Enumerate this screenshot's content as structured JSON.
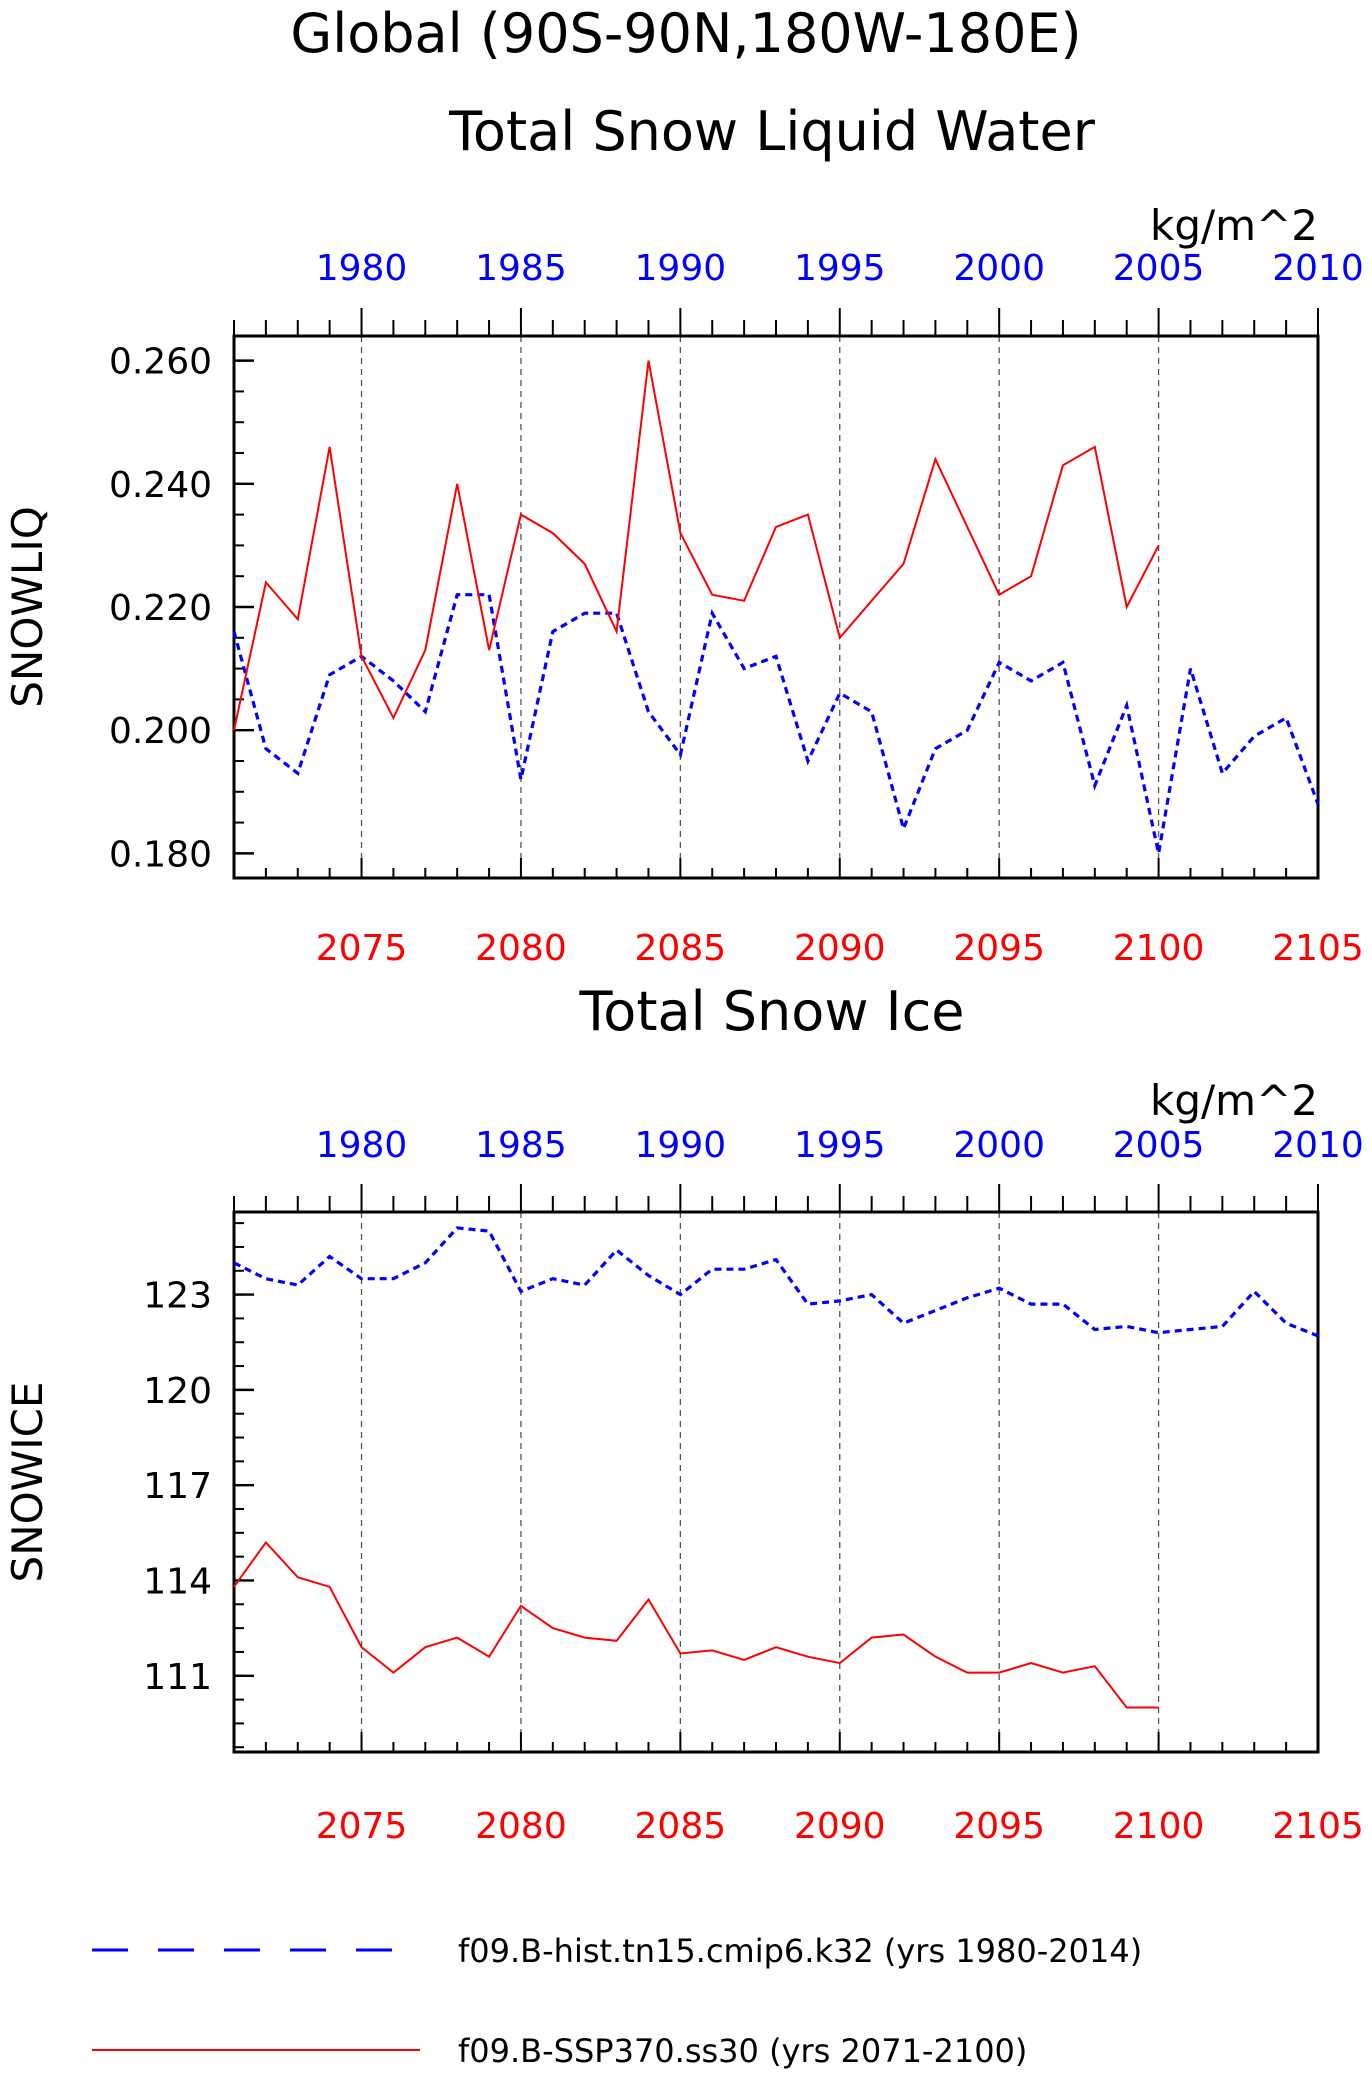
{
  "figure": {
    "title_line1": "Global (90S-90N,180W-180E)",
    "legend": [
      {
        "label": "f09.B-hist.tn15.cmip6.k32 (yrs 1980-2014)",
        "color": "#0000ff",
        "style": "dashed"
      },
      {
        "label": "f09.B-SSP370.ss30 (yrs 2071-2100)",
        "color": "#ff0000",
        "style": "solid"
      }
    ]
  },
  "colors": {
    "hist": "#0000ff",
    "ssp": "#ff0000",
    "axis": "#000000"
  },
  "chart_data": [
    {
      "type": "line",
      "title": "Total Snow Liquid Water",
      "units": "kg/m^2",
      "ylabel": "SNOWLIQ",
      "ylim": [
        0.176,
        0.264
      ],
      "yticks": [
        0.18,
        0.2,
        0.22,
        0.24,
        0.26
      ],
      "ytick_labels": [
        "0.180",
        "0.200",
        "0.220",
        "0.240",
        "0.260"
      ],
      "top_axis": {
        "range": [
          1976,
          2010
        ],
        "ticks": [
          1980,
          1985,
          1990,
          1995,
          2000,
          2005,
          2010
        ]
      },
      "bottom_axis": {
        "range": [
          2071,
          2105
        ],
        "ticks": [
          2075,
          2080,
          2085,
          2090,
          2095,
          2100,
          2105
        ]
      },
      "grid": "vertical dashed at bottom-axis major ticks",
      "series": [
        {
          "name": "f09.B-hist.tn15.cmip6.k32 (yrs 1980-2014)",
          "axis": "top",
          "x": [
            1976,
            1977,
            1978,
            1979,
            1980,
            1981,
            1982,
            1983,
            1984,
            1985,
            1986,
            1987,
            1988,
            1989,
            1990,
            1991,
            1992,
            1993,
            1994,
            1995,
            1996,
            1997,
            1998,
            1999,
            2000,
            2001,
            2002,
            2003,
            2004,
            2005,
            2006,
            2007,
            2008,
            2009,
            2010
          ],
          "values": [
            0.216,
            0.197,
            0.193,
            0.209,
            0.212,
            0.208,
            0.203,
            0.222,
            0.222,
            0.192,
            0.216,
            0.219,
            0.219,
            0.203,
            0.196,
            0.219,
            0.21,
            0.212,
            0.195,
            0.206,
            0.203,
            0.184,
            0.197,
            0.2,
            0.211,
            0.208,
            0.211,
            0.191,
            0.204,
            0.18,
            0.21,
            0.193,
            0.199,
            0.202,
            0.188
          ]
        },
        {
          "name": "f09.B-SSP370.ss30 (yrs 2071-2100)",
          "axis": "bottom",
          "x": [
            2071,
            2072,
            2073,
            2074,
            2075,
            2076,
            2077,
            2078,
            2079,
            2080,
            2081,
            2082,
            2083,
            2084,
            2085,
            2086,
            2087,
            2088,
            2089,
            2090,
            2091,
            2092,
            2093,
            2094,
            2095,
            2096,
            2097,
            2098,
            2099,
            2100
          ],
          "values": [
            0.2,
            0.224,
            0.218,
            0.246,
            0.212,
            0.202,
            0.213,
            0.24,
            0.213,
            0.235,
            0.232,
            0.227,
            0.216,
            0.26,
            0.232,
            0.222,
            0.221,
            0.233,
            0.235,
            0.215,
            0.221,
            0.227,
            0.244,
            0.233,
            0.222,
            0.225,
            0.243,
            0.246,
            0.22,
            0.23
          ]
        }
      ]
    },
    {
      "type": "line",
      "title": "Total Snow Ice",
      "units": "kg/m^2",
      "ylabel": "SNOWICE",
      "ylim": [
        108.6,
        125.6
      ],
      "yticks": [
        111,
        114,
        117,
        120,
        123
      ],
      "ytick_labels": [
        "111",
        "114",
        "117",
        "120",
        "123"
      ],
      "top_axis": {
        "range": [
          1976,
          2010
        ],
        "ticks": [
          1980,
          1985,
          1990,
          1995,
          2000,
          2005,
          2010
        ]
      },
      "bottom_axis": {
        "range": [
          2071,
          2105
        ],
        "ticks": [
          2075,
          2080,
          2085,
          2090,
          2095,
          2100,
          2105
        ]
      },
      "grid": "vertical dashed at bottom-axis major ticks",
      "series": [
        {
          "name": "f09.B-hist.tn15.cmip6.k32 (yrs 1980-2014)",
          "axis": "top",
          "x": [
            1976,
            1977,
            1978,
            1979,
            1980,
            1981,
            1982,
            1983,
            1984,
            1985,
            1986,
            1987,
            1988,
            1989,
            1990,
            1991,
            1992,
            1993,
            1994,
            1995,
            1996,
            1997,
            1998,
            1999,
            2000,
            2001,
            2002,
            2003,
            2004,
            2005,
            2006,
            2007,
            2008,
            2009,
            2010
          ],
          "values": [
            124.0,
            123.5,
            123.3,
            124.2,
            123.5,
            123.5,
            124.0,
            125.1,
            125.0,
            123.1,
            123.5,
            123.3,
            124.4,
            123.6,
            123.0,
            123.8,
            123.8,
            124.1,
            122.7,
            122.8,
            123.0,
            122.1,
            122.5,
            122.9,
            123.2,
            122.7,
            122.7,
            121.9,
            122.0,
            121.8,
            121.9,
            122.0,
            123.1,
            122.1,
            121.7
          ]
        },
        {
          "name": "f09.B-SSP370.ss30 (yrs 2071-2100)",
          "axis": "bottom",
          "x": [
            2071,
            2072,
            2073,
            2074,
            2075,
            2076,
            2077,
            2078,
            2079,
            2080,
            2081,
            2082,
            2083,
            2084,
            2085,
            2086,
            2087,
            2088,
            2089,
            2090,
            2091,
            2092,
            2093,
            2094,
            2095,
            2096,
            2097,
            2098,
            2099,
            2100
          ],
          "values": [
            113.8,
            115.2,
            114.1,
            113.8,
            111.9,
            111.1,
            111.9,
            112.2,
            111.6,
            113.2,
            112.5,
            112.2,
            112.1,
            113.4,
            111.7,
            111.8,
            111.5,
            111.9,
            111.6,
            111.4,
            112.2,
            112.3,
            111.6,
            111.1,
            111.1,
            111.4,
            111.1,
            111.3,
            110.0,
            110.0
          ]
        }
      ]
    }
  ]
}
